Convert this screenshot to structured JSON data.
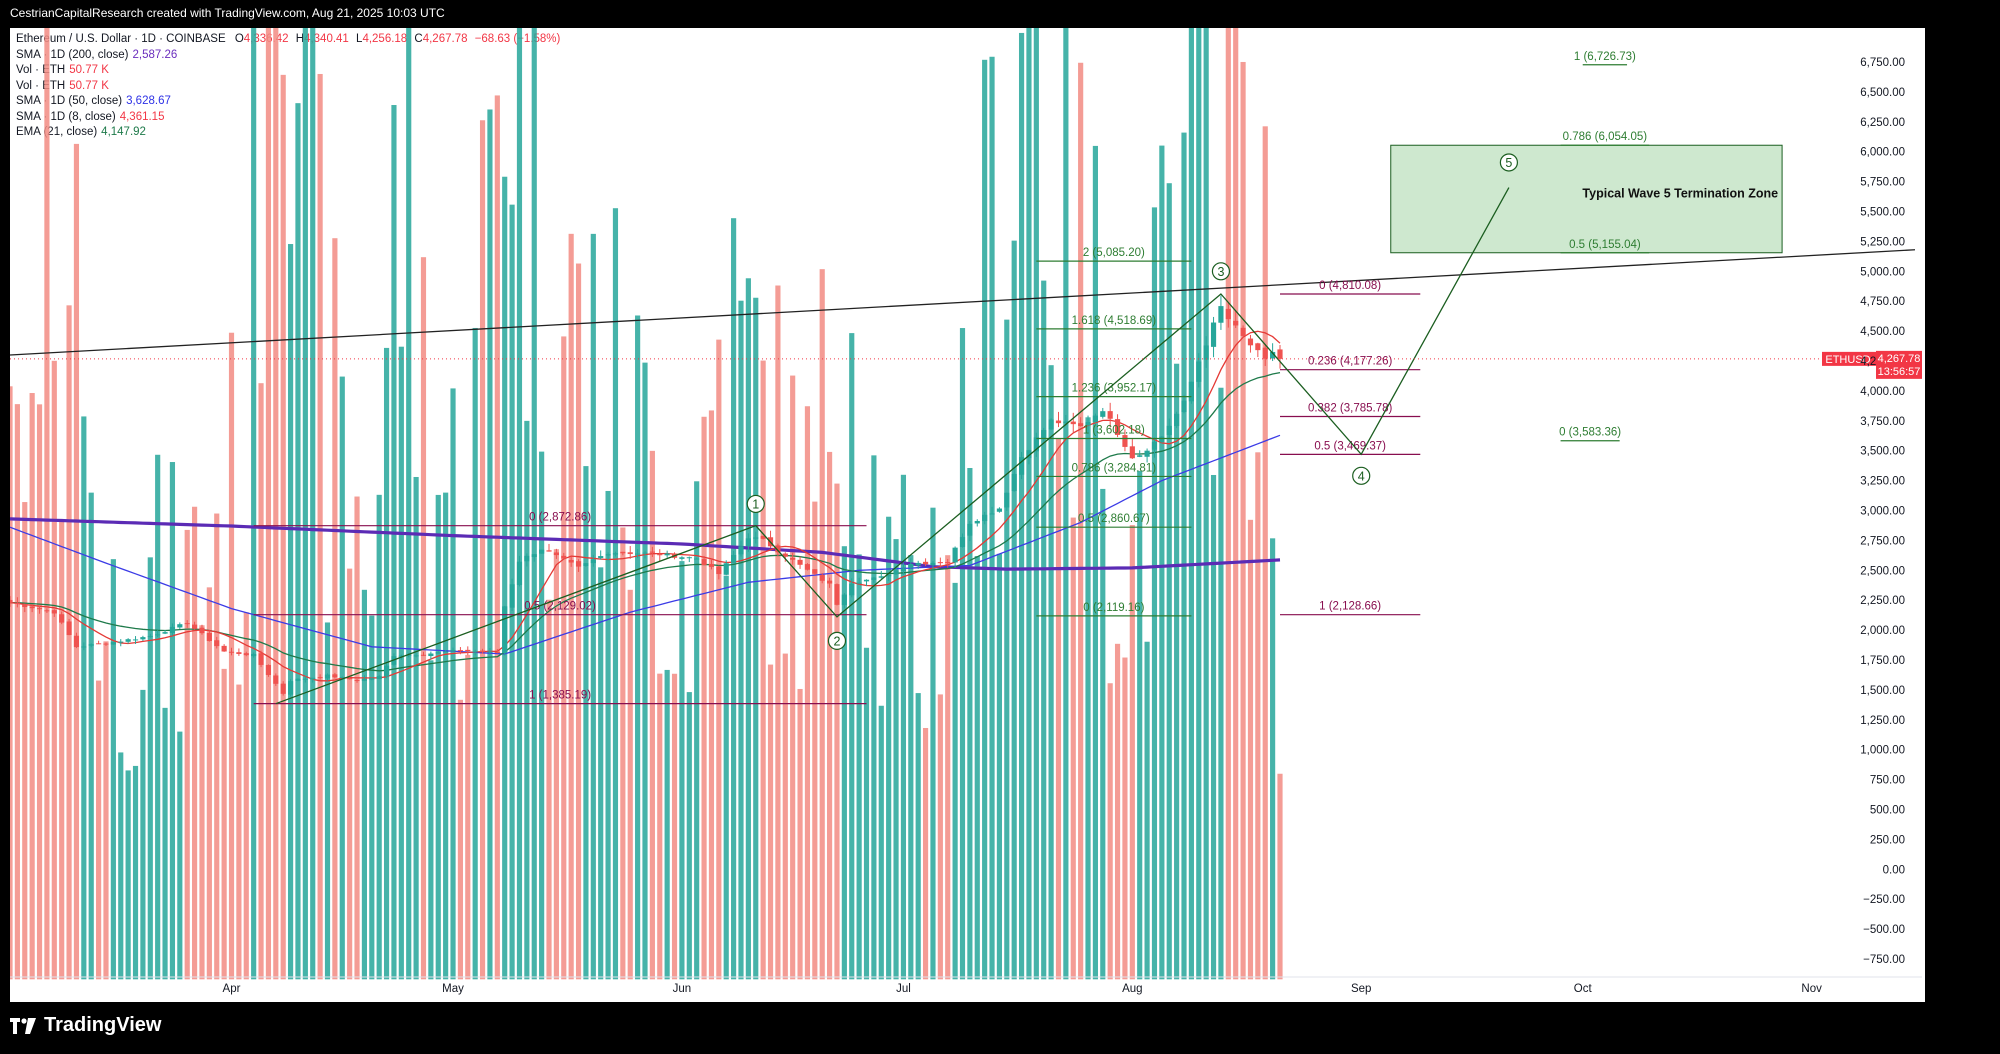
{
  "header": {
    "credit": "CestrianCapitalResearch created with TradingView.com, Aug 21, 2025 10:03 UTC"
  },
  "brand": {
    "name": "TradingView"
  },
  "legend": {
    "title": "Ethereum / U.S. Dollar · 1D · COINBASE",
    "o_label": "O",
    "o": "4,336.42",
    "h_label": "H",
    "h": "4,340.41",
    "l_label": "L",
    "l": "4,256.18",
    "c_label": "C",
    "c": "4,267.78",
    "chg": "−68.63 (−1.58%)",
    "indicators": [
      {
        "label": "SMA · 1D (200, close)",
        "value": "2,587.26",
        "color": "#6a2dbd"
      },
      {
        "label": "Vol · ETH",
        "value": "50.77 K",
        "color": "#f23645"
      },
      {
        "label": "Vol · ETH",
        "value": "50.77 K",
        "color": "#f23645"
      },
      {
        "label": "SMA · 1D (50, close)",
        "value": "3,628.67",
        "color": "#2e32e6"
      },
      {
        "label": "SMA · 1D (8, close)",
        "value": "4,361.15",
        "color": "#f23645"
      },
      {
        "label": "EMA (21, close)",
        "value": "4,147.92",
        "color": "#1e7a4a"
      }
    ]
  },
  "price_tag": {
    "symbol": "ETHUSD",
    "price": "4,267.78",
    "countdown": "13:56:57",
    "color": "#f23645"
  },
  "colors": {
    "up": "#26a69a",
    "down": "#ef5350",
    "fib_green": "#2e7d32",
    "fib_purple": "#880e4f",
    "zone": "#a5d6a7"
  },
  "chart_data": {
    "type": "candlestick",
    "currency": "USD",
    "y_axis_labels": [
      "6,750.00",
      "6,500.00",
      "6,250.00",
      "6,000.00",
      "5,750.00",
      "5,500.00",
      "5,250.00",
      "5,000.00",
      "4,750.00",
      "4,500.00",
      "4,250.00",
      "4,000.00",
      "3,750.00",
      "3,500.00",
      "3,250.00",
      "3,000.00",
      "2,750.00",
      "2,500.00",
      "2,250.00",
      "2,000.00",
      "1,750.00",
      "1,500.00",
      "1,250.00",
      "1,000.00",
      "750.00",
      "500.00",
      "250.00",
      "0.00",
      "−250.00",
      "−500.00",
      "−750.00"
    ],
    "ylim": [
      -900,
      7050
    ],
    "x_axis_labels": [
      "Apr",
      "May",
      "Jun",
      "Jul",
      "Aug",
      "Sep",
      "Oct",
      "Nov"
    ],
    "x_axis_dates": [
      "2025-04-01",
      "2025-05-01",
      "2025-06-01",
      "2025-07-01",
      "2025-08-01",
      "2025-09-01",
      "2025-10-01",
      "2025-11-01"
    ],
    "xlim": [
      "2025-03-02",
      "2025-11-15"
    ],
    "price_anchors": [
      [
        "2025-03-02",
        2230
      ],
      [
        "2025-03-08",
        2150
      ],
      [
        "2025-03-11",
        1860
      ],
      [
        "2025-03-16",
        1900
      ],
      [
        "2025-03-21",
        1950
      ],
      [
        "2025-03-26",
        2060
      ],
      [
        "2025-03-31",
        1820
      ],
      [
        "2025-04-04",
        1790
      ],
      [
        "2025-04-08",
        1470
      ],
      [
        "2025-04-09",
        1580
      ],
      [
        "2025-04-14",
        1620
      ],
      [
        "2025-04-18",
        1580
      ],
      [
        "2025-04-21",
        1610
      ],
      [
        "2025-04-23",
        1790
      ],
      [
        "2025-04-27",
        1800
      ],
      [
        "2025-05-02",
        1830
      ],
      [
        "2025-05-07",
        1810
      ],
      [
        "2025-05-08",
        2200
      ],
      [
        "2025-05-10",
        2580
      ],
      [
        "2025-05-13",
        2680
      ],
      [
        "2025-05-18",
        2520
      ],
      [
        "2025-05-22",
        2650
      ],
      [
        "2025-05-28",
        2640
      ],
      [
        "2025-06-03",
        2600
      ],
      [
        "2025-06-06",
        2470
      ],
      [
        "2025-06-10",
        2780
      ],
      [
        "2025-06-12",
        2750
      ],
      [
        "2025-06-17",
        2540
      ],
      [
        "2025-06-21",
        2380
      ],
      [
        "2025-06-22",
        2220
      ],
      [
        "2025-06-24",
        2400
      ],
      [
        "2025-06-28",
        2440
      ],
      [
        "2025-07-02",
        2560
      ],
      [
        "2025-07-07",
        2570
      ],
      [
        "2025-07-10",
        2900
      ],
      [
        "2025-07-14",
        3020
      ],
      [
        "2025-07-17",
        3450
      ],
      [
        "2025-07-21",
        3750
      ],
      [
        "2025-07-25",
        3700
      ],
      [
        "2025-07-28",
        3850
      ],
      [
        "2025-08-01",
        3450
      ],
      [
        "2025-08-02",
        3470
      ],
      [
        "2025-08-05",
        3620
      ],
      [
        "2025-08-08",
        3900
      ],
      [
        "2025-08-10",
        4250
      ],
      [
        "2025-08-13",
        4700
      ],
      [
        "2025-08-14",
        4600
      ],
      [
        "2025-08-16",
        4450
      ],
      [
        "2025-08-19",
        4250
      ],
      [
        "2025-08-20",
        4330
      ],
      [
        "2025-08-21",
        4267.78
      ]
    ],
    "volume_anchors": [
      [
        "2025-03-02",
        180
      ],
      [
        "2025-03-06",
        200
      ],
      [
        "2025-03-08",
        370
      ],
      [
        "2025-03-09",
        340
      ],
      [
        "2025-03-12",
        260
      ],
      [
        "2025-03-15",
        140
      ],
      [
        "2025-03-20",
        160
      ],
      [
        "2025-03-25",
        150
      ],
      [
        "2025-03-30",
        190
      ],
      [
        "2025-04-03",
        200
      ],
      [
        "2025-04-07",
        640
      ],
      [
        "2025-04-09",
        560
      ],
      [
        "2025-04-11",
        330
      ],
      [
        "2025-04-15",
        220
      ],
      [
        "2025-04-20",
        180
      ],
      [
        "2025-04-24",
        340
      ],
      [
        "2025-04-28",
        220
      ],
      [
        "2025-05-03",
        180
      ],
      [
        "2025-05-08",
        440
      ],
      [
        "2025-05-10",
        400
      ],
      [
        "2025-05-14",
        280
      ],
      [
        "2025-05-20",
        250
      ],
      [
        "2025-05-27",
        210
      ],
      [
        "2025-06-02",
        170
      ],
      [
        "2025-06-06",
        260
      ],
      [
        "2025-06-11",
        240
      ],
      [
        "2025-06-14",
        210
      ],
      [
        "2025-06-19",
        180
      ],
      [
        "2025-06-23",
        330
      ],
      [
        "2025-06-28",
        160
      ],
      [
        "2025-07-03",
        140
      ],
      [
        "2025-07-10",
        230
      ],
      [
        "2025-07-15",
        340
      ],
      [
        "2025-07-18",
        430
      ],
      [
        "2025-07-22",
        320
      ],
      [
        "2025-07-27",
        260
      ],
      [
        "2025-08-01",
        170
      ],
      [
        "2025-08-04",
        240
      ],
      [
        "2025-08-09",
        300
      ],
      [
        "2025-08-11",
        350
      ],
      [
        "2025-08-14",
        430
      ],
      [
        "2025-08-16",
        380
      ],
      [
        "2025-08-19",
        260
      ],
      [
        "2025-08-21",
        80
      ]
    ],
    "volume_scale": {
      "baseline": -880,
      "units_per_volume": 2.9
    },
    "sma200_anchors": [
      [
        "2025-03-02",
        2930
      ],
      [
        "2025-04-01",
        2870
      ],
      [
        "2025-05-01",
        2790
      ],
      [
        "2025-06-01",
        2720
      ],
      [
        "2025-06-20",
        2650
      ],
      [
        "2025-07-05",
        2530
      ],
      [
        "2025-07-15",
        2510
      ],
      [
        "2025-08-01",
        2520
      ],
      [
        "2025-08-21",
        2587.26
      ]
    ],
    "sma50_anchors": [
      [
        "2025-03-02",
        2860
      ],
      [
        "2025-03-15",
        2560
      ],
      [
        "2025-04-01",
        2180
      ],
      [
        "2025-04-20",
        1860
      ],
      [
        "2025-05-08",
        1800
      ],
      [
        "2025-05-25",
        2150
      ],
      [
        "2025-06-10",
        2400
      ],
      [
        "2025-06-25",
        2500
      ],
      [
        "2025-07-10",
        2540
      ],
      [
        "2025-07-25",
        2900
      ],
      [
        "2025-08-05",
        3250
      ],
      [
        "2025-08-21",
        3628.67
      ]
    ],
    "trendline": {
      "from": [
        "2025-03-02",
        4300
      ],
      "to": [
        "2025-11-15",
        5180
      ]
    },
    "wave_path": [
      [
        "2025-04-07",
        1385
      ],
      [
        "2025-06-11",
        2873
      ],
      [
        "2025-06-22",
        2110
      ],
      [
        "2025-08-13",
        4810
      ],
      [
        "2025-09-01",
        3470
      ],
      [
        "2025-09-21",
        5700
      ]
    ],
    "wave_labels": [
      {
        "label": "1",
        "x": "2025-06-11",
        "y": 3055
      },
      {
        "label": "2",
        "x": "2025-06-22",
        "y": 1910
      },
      {
        "label": "3",
        "x": "2025-08-13",
        "y": 5000
      },
      {
        "label": "4",
        "x": "2025-09-01",
        "y": 3290
      },
      {
        "label": "5",
        "x": "2025-09-21",
        "y": 5910
      }
    ],
    "fib_levels": [
      {
        "label": "0 (2,872.86)",
        "y": 2872.86,
        "x0": "2025-04-04",
        "x1": "2025-06-26",
        "color": "#880e4f"
      },
      {
        "label": "0.5 (2,129.02)",
        "y": 2129.02,
        "x0": "2025-04-04",
        "x1": "2025-06-26",
        "color": "#880e4f"
      },
      {
        "label": "1 (1,385.19)",
        "y": 1385.19,
        "x0": "2025-04-04",
        "x1": "2025-06-26",
        "color": "#880e4f"
      },
      {
        "label": "2 (5,085.20)",
        "y": 5085.2,
        "x0": "2025-07-19",
        "x1": "2025-08-09",
        "color": "#2e7d32"
      },
      {
        "label": "1.618 (4,518.69)",
        "y": 4518.69,
        "x0": "2025-07-19",
        "x1": "2025-08-09",
        "color": "#2e7d32"
      },
      {
        "label": "1.236 (3,952.17)",
        "y": 3952.17,
        "x0": "2025-07-19",
        "x1": "2025-08-09",
        "color": "#2e7d32"
      },
      {
        "label": "1 (3,602.18)",
        "y": 3602.18,
        "x0": "2025-07-19",
        "x1": "2025-08-09",
        "color": "#2e7d32"
      },
      {
        "label": "0.786 (3,284.81)",
        "y": 3284.81,
        "x0": "2025-07-19",
        "x1": "2025-08-09",
        "color": "#2e7d32"
      },
      {
        "label": "0.5 (2,860.67)",
        "y": 2860.67,
        "x0": "2025-07-19",
        "x1": "2025-08-09",
        "color": "#2e7d32"
      },
      {
        "label": "0 (2,119.16)",
        "y": 2119.16,
        "x0": "2025-07-19",
        "x1": "2025-08-09",
        "color": "#2e7d32"
      },
      {
        "label": "0 (4,810.08)",
        "y": 4810.08,
        "x0": "2025-08-21",
        "x1": "2025-09-09",
        "color": "#880e4f"
      },
      {
        "label": "0.236 (4,177.26)",
        "y": 4177.26,
        "x0": "2025-08-21",
        "x1": "2025-09-09",
        "color": "#880e4f"
      },
      {
        "label": "0.382 (3,785.78)",
        "y": 3785.78,
        "x0": "2025-08-21",
        "x1": "2025-09-09",
        "color": "#880e4f"
      },
      {
        "label": "0.5 (3,469.37)",
        "y": 3469.37,
        "x0": "2025-08-21",
        "x1": "2025-09-09",
        "color": "#880e4f"
      },
      {
        "label": "1 (2,128.66)",
        "y": 2128.66,
        "x0": "2025-08-21",
        "x1": "2025-09-09",
        "color": "#880e4f"
      },
      {
        "label": "1 (6,726.73)",
        "y": 6726.73,
        "x0": "2025-10-01",
        "x1": "2025-10-07",
        "color": "#2e7d32"
      },
      {
        "label": "0.786 (6,054.05)",
        "y": 6054.05,
        "x0": "2025-09-28",
        "x1": "2025-10-10",
        "color": "#2e7d32"
      },
      {
        "label": "0.5 (5,155.04)",
        "y": 5155.04,
        "x0": "2025-09-28",
        "x1": "2025-10-10",
        "color": "#2e7d32"
      },
      {
        "label": "0 (3,583.36)",
        "y": 3583.36,
        "x0": "2025-09-28",
        "x1": "2025-10-06",
        "color": "#2e7d32"
      }
    ],
    "zone": {
      "label": "Typical Wave 5 Termination Zone",
      "x0": "2025-09-05",
      "x1": "2025-10-28",
      "y0": 5155.04,
      "y1": 6054.05
    }
  }
}
